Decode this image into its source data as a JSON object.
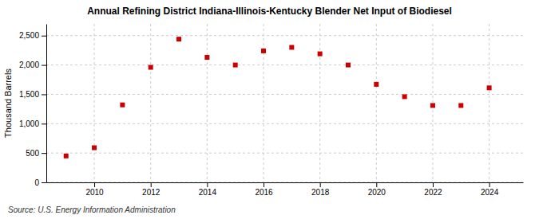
{
  "chart_data": {
    "type": "scatter",
    "title": "Annual Refining District Indiana-Illinois-Kentucky Blender Net Input of Biodiesel",
    "ylabel": "Thousand Barrels",
    "annotations": [
      "Source: U.S. Energy Information Administration"
    ],
    "x": [
      2009,
      2010,
      2011,
      2012,
      2013,
      2014,
      2015,
      2016,
      2017,
      2018,
      2019,
      2020,
      2021,
      2022,
      2023,
      2024
    ],
    "values": [
      450,
      590,
      1320,
      1960,
      2440,
      2130,
      2000,
      2240,
      2300,
      2190,
      2000,
      1670,
      1460,
      1310,
      1310,
      1610
    ],
    "color": "#cc0000",
    "marker": "square",
    "xlim": [
      2008.3,
      2025.2
    ],
    "xticks": [
      2010,
      2012,
      2014,
      2016,
      2018,
      2020,
      2022,
      2024
    ],
    "ylim": [
      0,
      2700
    ],
    "yticks": [
      0,
      500,
      {
        "value": 1000,
        "label": "1,000"
      },
      {
        "value": 1500,
        "label": "1,500"
      },
      {
        "value": 2000,
        "label": "2,000"
      },
      {
        "value": 2500,
        "label": "2,500"
      }
    ],
    "grid": true
  }
}
